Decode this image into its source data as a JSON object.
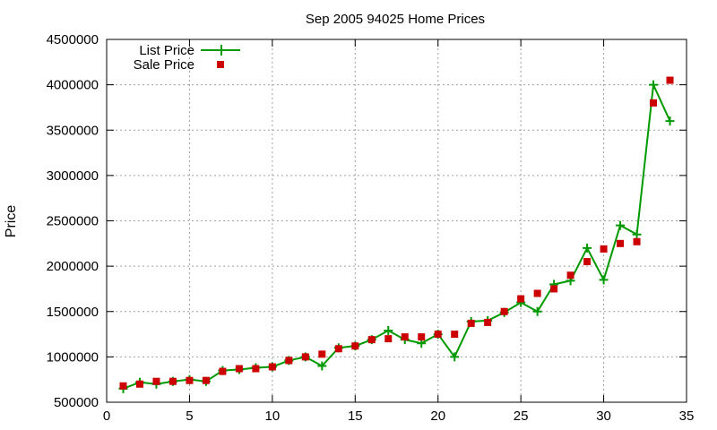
{
  "chart_data": {
    "type": "line",
    "title": "Sep 2005 94025 Home Prices",
    "xlabel": "",
    "ylabel": "Price",
    "xlim": [
      0,
      35
    ],
    "ylim": [
      500000,
      4500000
    ],
    "xticks": [
      0,
      5,
      10,
      15,
      20,
      25,
      30,
      35
    ],
    "yticks": [
      500000,
      1000000,
      1500000,
      2000000,
      2500000,
      3000000,
      3500000,
      4000000,
      4500000
    ],
    "grid": true,
    "legend_position": "top-left",
    "x": [
      1,
      2,
      3,
      4,
      5,
      6,
      7,
      8,
      9,
      10,
      11,
      12,
      13,
      14,
      15,
      16,
      17,
      18,
      19,
      20,
      21,
      22,
      23,
      24,
      25,
      26,
      27,
      28,
      29,
      30,
      31,
      32,
      33,
      34
    ],
    "series": [
      {
        "name": "List Price",
        "style": "line-with-plus-markers",
        "color": "#009900",
        "values": [
          650000,
          720000,
          700000,
          730000,
          750000,
          730000,
          850000,
          860000,
          880000,
          890000,
          960000,
          1000000,
          900000,
          1100000,
          1120000,
          1190000,
          1290000,
          1190000,
          1150000,
          1250000,
          1000000,
          1390000,
          1400000,
          1490000,
          1600000,
          1500000,
          1800000,
          1840000,
          2200000,
          1850000,
          2450000,
          2350000,
          4000000,
          3600000
        ]
      },
      {
        "name": "Sale Price",
        "style": "square-markers",
        "color": "#cc0000",
        "values": [
          680000,
          700000,
          730000,
          730000,
          740000,
          740000,
          840000,
          870000,
          870000,
          890000,
          960000,
          1000000,
          1030000,
          1090000,
          1120000,
          1190000,
          1200000,
          1220000,
          1220000,
          1250000,
          1250000,
          1370000,
          1380000,
          1500000,
          1640000,
          1700000,
          1750000,
          1900000,
          2050000,
          2190000,
          2250000,
          2270000,
          3800000,
          4050000
        ]
      }
    ]
  }
}
